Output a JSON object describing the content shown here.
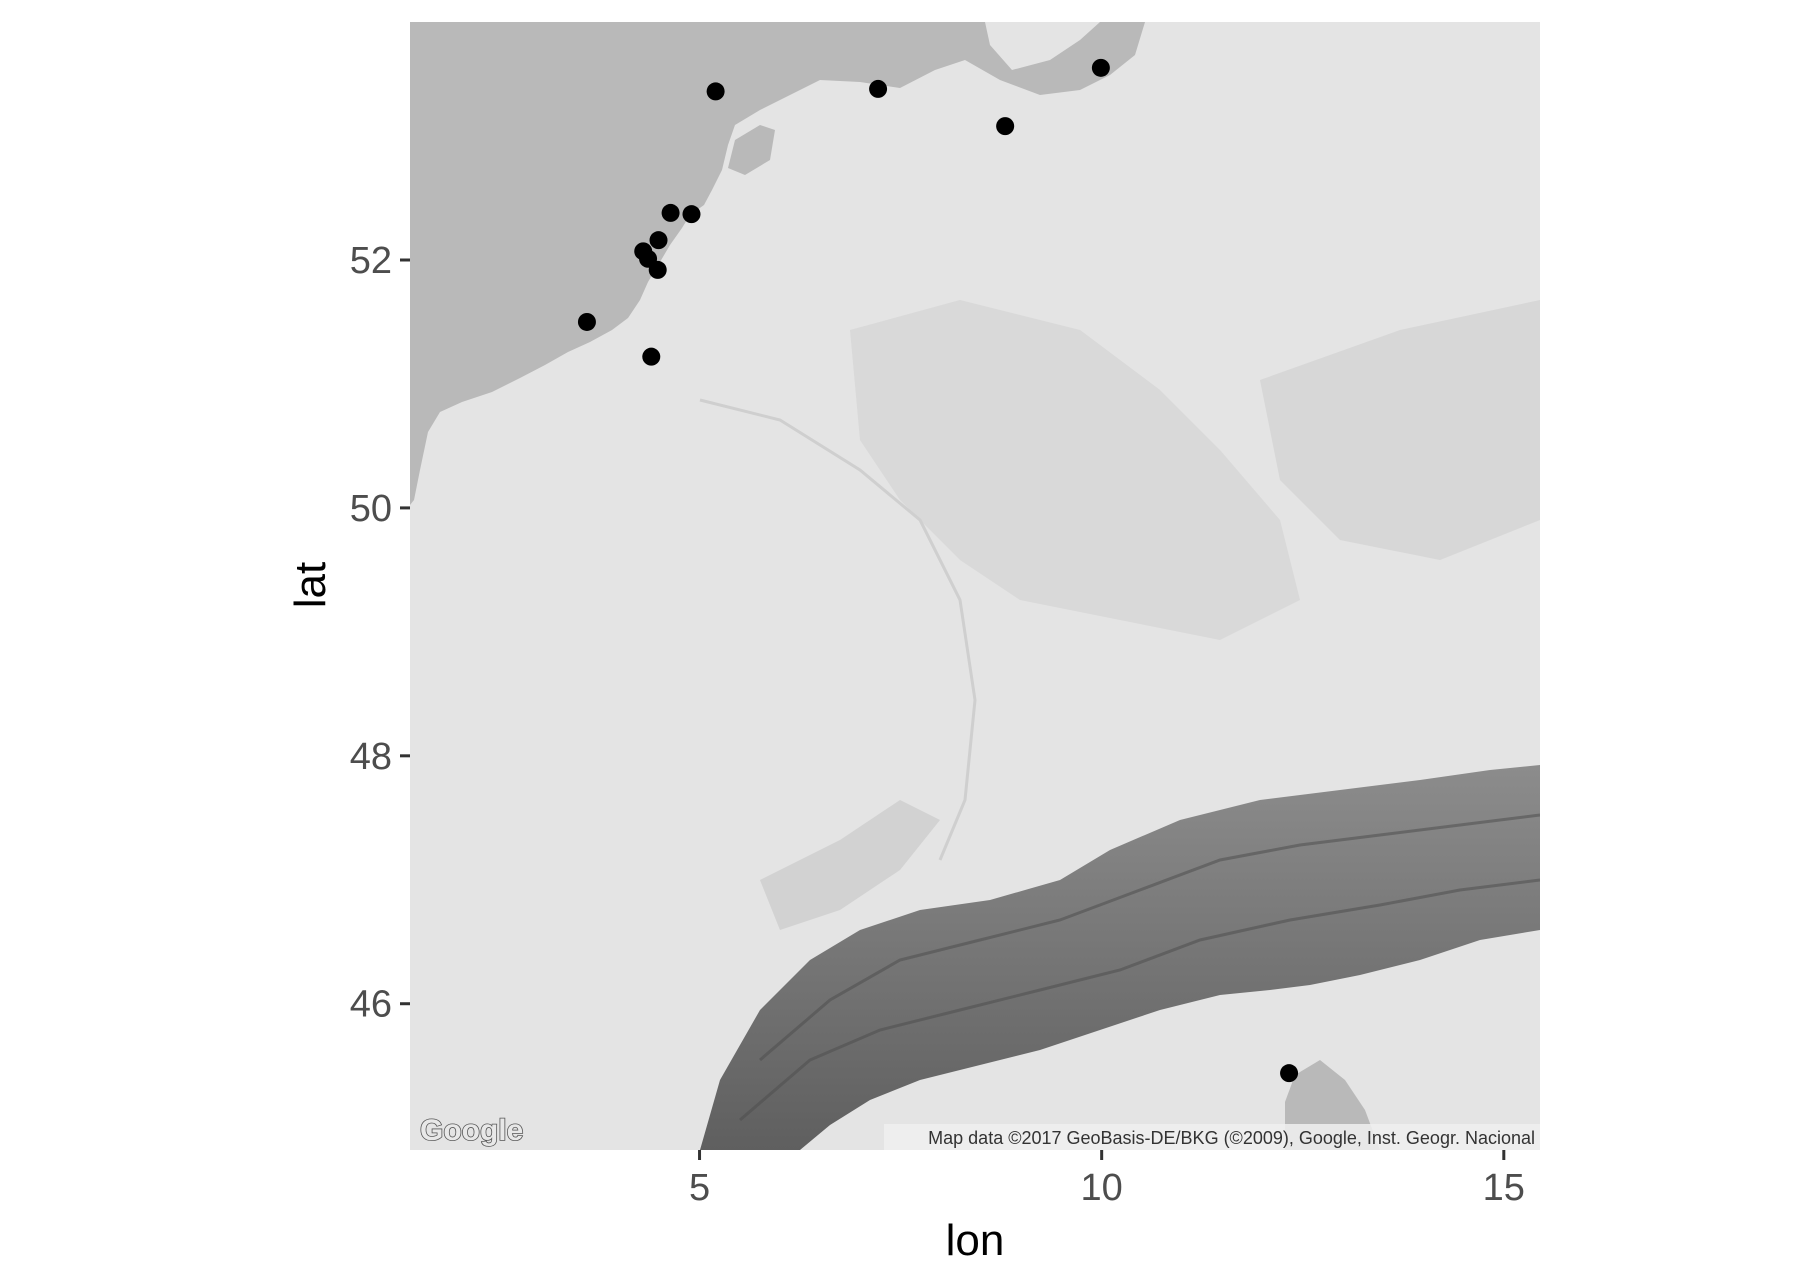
{
  "chart_data": {
    "type": "scatter",
    "title": "",
    "xlabel": "lon",
    "ylabel": "lat",
    "xlim": [
      1.4,
      15.45
    ],
    "ylim": [
      44.82,
      53.92
    ],
    "x_ticks": [
      5,
      10,
      15
    ],
    "x_tick_labels": [
      "5",
      "10",
      "15"
    ],
    "y_ticks": [
      46,
      48,
      50,
      52
    ],
    "y_tick_labels": [
      "46",
      "48",
      "50",
      "52"
    ],
    "grid": false,
    "legend": "none",
    "basemap": "Google terrain (grayscale)",
    "points": [
      {
        "lon": 3.6,
        "lat": 51.5
      },
      {
        "lon": 4.4,
        "lat": 51.22
      },
      {
        "lon": 4.3,
        "lat": 52.07
      },
      {
        "lon": 4.36,
        "lat": 52.01
      },
      {
        "lon": 4.49,
        "lat": 52.16
      },
      {
        "lon": 4.64,
        "lat": 52.38
      },
      {
        "lon": 4.9,
        "lat": 52.37
      },
      {
        "lon": 4.48,
        "lat": 51.92
      },
      {
        "lon": 5.2,
        "lat": 53.36
      },
      {
        "lon": 7.22,
        "lat": 53.38
      },
      {
        "lon": 8.8,
        "lat": 53.08
      },
      {
        "lon": 9.99,
        "lat": 53.55
      },
      {
        "lon": 12.33,
        "lat": 45.44
      }
    ]
  },
  "map": {
    "attribution": "Map data ©2017 GeoBasis-DE/BKG (©2009), Google, Inst. Geogr. Nacional",
    "logo": "Google"
  },
  "colors": {
    "land": "#e4e4e4",
    "sea": "#b9b9b9",
    "mountain_dark": "#6e6e6e",
    "mountain_mid": "#9a9a9a",
    "point": "#000000"
  }
}
